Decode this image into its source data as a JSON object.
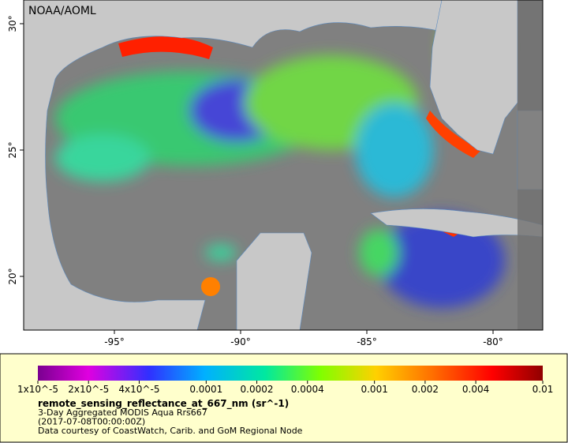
{
  "map": {
    "watermark": "NOAA/AOML",
    "lon_ticks": [
      {
        "value": -95,
        "label": "-95°"
      },
      {
        "value": -90,
        "label": "-90°"
      },
      {
        "value": -85,
        "label": "-85°"
      },
      {
        "value": -80,
        "label": "-80°"
      }
    ],
    "lat_ticks": [
      {
        "value": 30,
        "label": "30°"
      },
      {
        "value": 25,
        "label": "25°"
      },
      {
        "value": 20,
        "label": "20°"
      }
    ]
  },
  "legend": {
    "colorbar_ticks": [
      {
        "value": 1e-05,
        "label": "1x10^-5"
      },
      {
        "value": 2e-05,
        "label": "2x10^-5"
      },
      {
        "value": 4e-05,
        "label": "4x10^-5"
      },
      {
        "value": 0.0001,
        "label": "0.0001"
      },
      {
        "value": 0.0002,
        "label": "0.0002"
      },
      {
        "value": 0.0004,
        "label": "0.0004"
      },
      {
        "value": 0.001,
        "label": "0.001"
      },
      {
        "value": 0.002,
        "label": "0.002"
      },
      {
        "value": 0.004,
        "label": "0.004"
      },
      {
        "value": 0.01,
        "label": "0.01"
      }
    ],
    "variable": "remote_sensing_reflectance_at_667_nm (sr^-1)",
    "lines": [
      "3-Day Aggregated MODIS Aqua Rrs667",
      "(2017-07-08T00:00:00Z)",
      "Data courtesy of CoastWatch, Carib. and GoM Regional Node"
    ]
  }
}
